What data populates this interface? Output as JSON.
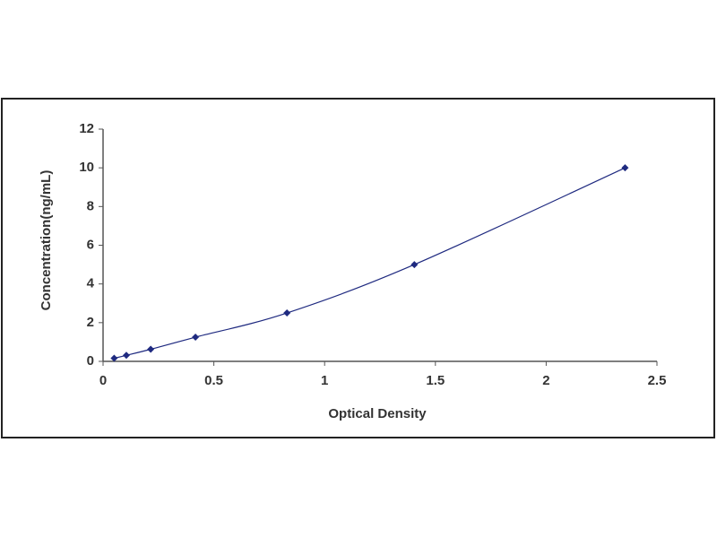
{
  "chart_data": {
    "type": "line",
    "x_label": "Optical Density",
    "y_label": "Concentration(ng/mL)",
    "x": [
      0.05,
      0.105,
      0.215,
      0.417,
      0.83,
      1.405,
      2.356
    ],
    "series": [
      {
        "color": "#1f2a80",
        "values": [
          0.16,
          0.31,
          0.625,
          1.25,
          2.5,
          5,
          10
        ]
      }
    ],
    "xlim": [
      0,
      2.5
    ],
    "xticks": [
      0,
      0.5,
      1,
      1.5,
      2,
      2.5
    ],
    "ylim": [
      0,
      12
    ],
    "yticks": [
      0,
      2,
      4,
      6,
      8,
      10,
      12
    ],
    "grid": false,
    "markers": true,
    "smooth": true
  }
}
